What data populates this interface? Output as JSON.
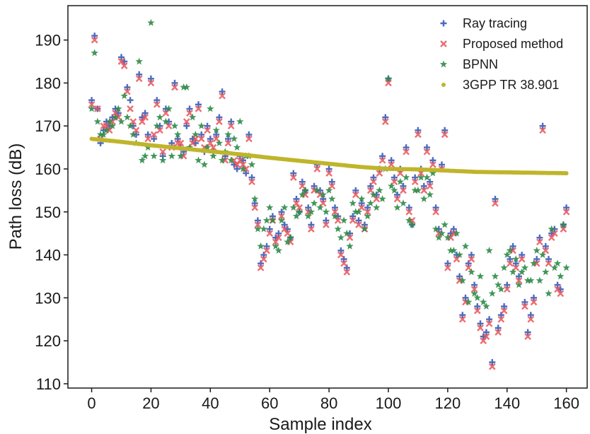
{
  "chart_data": {
    "type": "scatter",
    "xlabel": "Sample index",
    "ylabel": "Path loss (dB)",
    "xlim": [
      -8,
      167
    ],
    "ylim": [
      109,
      198
    ],
    "xticks": [
      0,
      20,
      40,
      60,
      80,
      100,
      120,
      140,
      160
    ],
    "yticks": [
      110,
      120,
      130,
      140,
      150,
      160,
      170,
      180,
      190
    ],
    "grid": false,
    "legend_position": "top-right",
    "series": [
      {
        "name": "Ray tracing",
        "marker": "plus",
        "color": "#3b5bb5",
        "x": [
          0,
          1,
          2,
          3,
          4,
          5,
          6,
          7,
          8,
          9,
          10,
          11,
          12,
          13,
          14,
          15,
          16,
          17,
          18,
          19,
          20,
          21,
          22,
          23,
          24,
          25,
          26,
          27,
          28,
          29,
          30,
          31,
          32,
          33,
          34,
          35,
          36,
          37,
          38,
          39,
          40,
          41,
          42,
          43,
          44,
          45,
          46,
          47,
          48,
          49,
          50,
          51,
          52,
          53,
          54,
          55,
          56,
          57,
          58,
          59,
          60,
          61,
          62,
          63,
          64,
          65,
          66,
          67,
          68,
          69,
          70,
          71,
          72,
          73,
          74,
          75,
          76,
          77,
          78,
          79,
          80,
          81,
          82,
          83,
          84,
          85,
          86,
          87,
          88,
          89,
          90,
          91,
          92,
          93,
          94,
          95,
          96,
          97,
          98,
          99,
          100,
          101,
          102,
          103,
          104,
          105,
          106,
          107,
          108,
          109,
          110,
          111,
          112,
          113,
          114,
          115,
          116,
          117,
          118,
          119,
          120,
          121,
          122,
          123,
          124,
          125,
          126,
          127,
          128,
          129,
          130,
          131,
          132,
          133,
          134,
          135,
          136,
          137,
          138,
          139,
          140,
          141,
          142,
          143,
          144,
          145,
          146,
          147,
          148,
          149,
          150,
          151,
          152,
          153,
          154,
          155,
          156,
          157,
          158,
          159,
          160
        ],
        "values": [
          176,
          191,
          174,
          166,
          169,
          171,
          170,
          172,
          174,
          173,
          186,
          185,
          179,
          176,
          170,
          168,
          182,
          172,
          173,
          168,
          181,
          167,
          176,
          170,
          163,
          174,
          171,
          166,
          180,
          167,
          165,
          164,
          170,
          174,
          167,
          166,
          175,
          168,
          164,
          170,
          167,
          164,
          168,
          172,
          178,
          163,
          167,
          171,
          161,
          160,
          163,
          162,
          159,
          168,
          158,
          152,
          148,
          138,
          140,
          142,
          146,
          149,
          144,
          145,
          150,
          147,
          146,
          144,
          159,
          153,
          150,
          157,
          155,
          151,
          147,
          156,
          161,
          155,
          153,
          148,
          160,
          157,
          151,
          149,
          141,
          139,
          137,
          145,
          149,
          155,
          148,
          152,
          147,
          151,
          156,
          158,
          154,
          160,
          163,
          172,
          181,
          162,
          158,
          154,
          160,
          156,
          165,
          151,
          147,
          158,
          169,
          160,
          156,
          165,
          157,
          162,
          151,
          146,
          161,
          169,
          138,
          145,
          146,
          140,
          135,
          126,
          130,
          138,
          140,
          133,
          128,
          124,
          121,
          122,
          125,
          115,
          153,
          123,
          126,
          128,
          133,
          139,
          142,
          138,
          135,
          140,
          129,
          122,
          126,
          130,
          139,
          144,
          170,
          142,
          139,
          145,
          146,
          133,
          132,
          147,
          151
        ]
      },
      {
        "name": "Proposed method",
        "marker": "x",
        "color": "#e8545a",
        "x": [
          0,
          1,
          2,
          3,
          4,
          5,
          6,
          7,
          8,
          9,
          10,
          11,
          12,
          13,
          14,
          15,
          16,
          17,
          18,
          19,
          20,
          21,
          22,
          23,
          24,
          25,
          26,
          27,
          28,
          29,
          30,
          31,
          32,
          33,
          34,
          35,
          36,
          37,
          38,
          39,
          40,
          41,
          42,
          43,
          44,
          45,
          46,
          47,
          48,
          49,
          50,
          51,
          52,
          53,
          54,
          55,
          56,
          57,
          58,
          59,
          60,
          61,
          62,
          63,
          64,
          65,
          66,
          67,
          68,
          69,
          70,
          71,
          72,
          73,
          74,
          75,
          76,
          77,
          78,
          79,
          80,
          81,
          82,
          83,
          84,
          85,
          86,
          87,
          88,
          89,
          90,
          91,
          92,
          93,
          94,
          95,
          96,
          97,
          98,
          99,
          100,
          101,
          102,
          103,
          104,
          105,
          106,
          107,
          108,
          109,
          110,
          111,
          112,
          113,
          114,
          115,
          116,
          117,
          118,
          119,
          120,
          121,
          122,
          123,
          124,
          125,
          126,
          127,
          128,
          129,
          130,
          131,
          132,
          133,
          134,
          135,
          136,
          137,
          138,
          139,
          140,
          141,
          142,
          143,
          144,
          145,
          146,
          147,
          148,
          149,
          150,
          151,
          152,
          153,
          154,
          155,
          156,
          157,
          158,
          159,
          160
        ],
        "values": [
          175,
          190,
          174,
          167,
          170,
          170,
          169,
          171,
          173,
          172,
          185,
          184,
          178,
          174,
          171,
          169,
          181,
          171,
          172,
          167,
          180,
          168,
          175,
          169,
          164,
          173,
          170,
          165,
          179,
          166,
          166,
          163,
          171,
          173,
          166,
          167,
          174,
          167,
          165,
          169,
          166,
          165,
          167,
          171,
          177,
          162,
          166,
          170,
          162,
          161,
          162,
          161,
          160,
          167,
          157,
          151,
          147,
          137,
          139,
          141,
          145,
          148,
          143,
          144,
          149,
          146,
          145,
          143,
          158,
          152,
          151,
          156,
          154,
          150,
          146,
          155,
          160,
          154,
          152,
          147,
          159,
          156,
          150,
          148,
          140,
          138,
          136,
          144,
          148,
          154,
          147,
          151,
          146,
          150,
          155,
          157,
          153,
          159,
          162,
          171,
          180,
          161,
          157,
          153,
          159,
          155,
          164,
          150,
          148,
          157,
          168,
          159,
          155,
          164,
          156,
          161,
          150,
          145,
          160,
          168,
          137,
          144,
          145,
          139,
          134,
          125,
          129,
          137,
          139,
          132,
          127,
          123,
          120,
          121,
          124,
          114,
          152,
          122,
          125,
          127,
          132,
          138,
          141,
          137,
          134,
          139,
          128,
          121,
          125,
          129,
          138,
          143,
          169,
          141,
          138,
          144,
          145,
          132,
          131,
          146,
          150
        ]
      },
      {
        "name": "BPNN",
        "marker": "star",
        "color": "#2e8b47",
        "x": [
          0,
          1,
          2,
          3,
          4,
          5,
          6,
          7,
          8,
          9,
          10,
          11,
          12,
          13,
          14,
          15,
          16,
          17,
          18,
          19,
          20,
          21,
          22,
          23,
          24,
          25,
          26,
          27,
          28,
          29,
          30,
          31,
          32,
          33,
          34,
          35,
          36,
          37,
          38,
          39,
          40,
          41,
          42,
          43,
          44,
          45,
          46,
          47,
          48,
          49,
          50,
          51,
          52,
          53,
          54,
          55,
          56,
          57,
          58,
          59,
          60,
          61,
          62,
          63,
          64,
          65,
          66,
          67,
          68,
          69,
          70,
          71,
          72,
          73,
          74,
          75,
          76,
          77,
          78,
          79,
          80,
          81,
          82,
          83,
          84,
          85,
          86,
          87,
          88,
          89,
          90,
          91,
          92,
          93,
          94,
          95,
          96,
          97,
          98,
          99,
          100,
          101,
          102,
          103,
          104,
          105,
          106,
          107,
          108,
          109,
          110,
          111,
          112,
          113,
          114,
          115,
          116,
          117,
          118,
          119,
          120,
          121,
          122,
          123,
          124,
          125,
          126,
          127,
          128,
          129,
          130,
          131,
          132,
          133,
          134,
          135,
          136,
          137,
          138,
          139,
          140,
          141,
          142,
          143,
          144,
          145,
          146,
          147,
          148,
          149,
          150,
          151,
          152,
          153,
          154,
          155,
          156,
          157,
          158,
          159,
          160
        ],
        "values": [
          174,
          187,
          171,
          168,
          168,
          169,
          171,
          170,
          172,
          174,
          171,
          177,
          172,
          170,
          168,
          166,
          185,
          162,
          163,
          165,
          194,
          163,
          170,
          172,
          162,
          171,
          174,
          163,
          170,
          168,
          163,
          179,
          179,
          165,
          172,
          168,
          162,
          170,
          161,
          165,
          174,
          163,
          169,
          166,
          162,
          164,
          168,
          162,
          167,
          165,
          171,
          160,
          163,
          163,
          161,
          153,
          146,
          142,
          146,
          148,
          151,
          148,
          142,
          141,
          148,
          151,
          143,
          144,
          151,
          149,
          150,
          154,
          155,
          149,
          150,
          152,
          155,
          151,
          154,
          150,
          155,
          153,
          149,
          146,
          144,
          148,
          145,
          142,
          152,
          150,
          150,
          153,
          146,
          149,
          152,
          154,
          151,
          155,
          153,
          160,
          181,
          156,
          155,
          151,
          157,
          152,
          158,
          148,
          147,
          155,
          155,
          158,
          153,
          158,
          154,
          159,
          146,
          144,
          145,
          147,
          144,
          141,
          141,
          145,
          140,
          134,
          142,
          129,
          136,
          131,
          130,
          135,
          129,
          128,
          141,
          131,
          135,
          133,
          132,
          137,
          140,
          141,
          136,
          139,
          133,
          136,
          137,
          134,
          134,
          138,
          141,
          134,
          140,
          136,
          131,
          146,
          137,
          138,
          135,
          147,
          137
        ]
      },
      {
        "name": "3GPP TR 38.901",
        "marker": "dot",
        "color": "#bfb52b",
        "x": [
          0,
          10,
          20,
          30,
          40,
          50,
          60,
          70,
          80,
          90,
          100,
          110,
          120,
          130,
          140,
          150,
          160
        ],
        "values": [
          167,
          166.3,
          165.5,
          164.8,
          164.1,
          163.4,
          162.6,
          161.9,
          161.2,
          160.5,
          160,
          159.9,
          159.6,
          159.3,
          159.2,
          159.1,
          159
        ]
      }
    ]
  }
}
